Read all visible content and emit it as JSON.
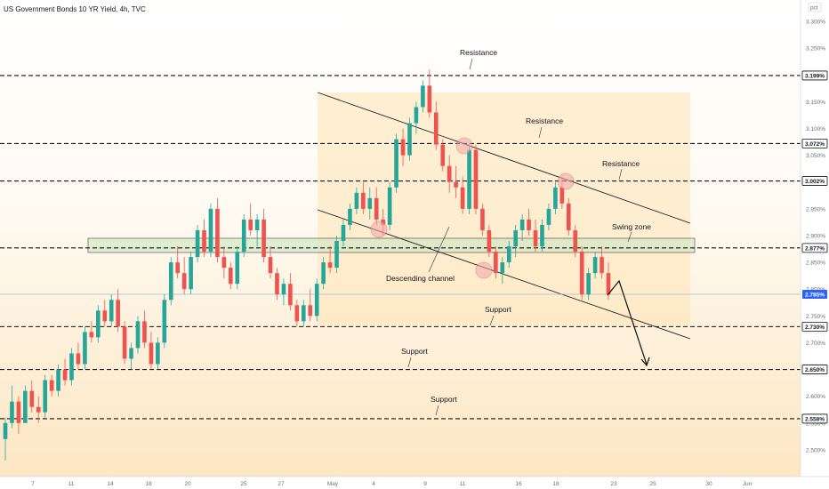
{
  "chart_data": {
    "type": "candlestick",
    "title": "US Government Bonds 10 YR Yield, 4h, TVC",
    "unit_label": "pct",
    "ylim": [
      2.45,
      3.34
    ],
    "price_ticks": [
      "3.300%",
      "3.250%",
      "3.150%",
      "3.100%",
      "3.050%",
      "2.950%",
      "2.900%",
      "2.850%",
      "2.800%",
      "2.750%",
      "2.700%",
      "2.600%",
      "2.550%",
      "2.500%"
    ],
    "date_ticks": [
      "7",
      "11",
      "14",
      "18",
      "20",
      "25",
      "27",
      "May",
      "4",
      "9",
      "11",
      "16",
      "18",
      "23",
      "25",
      "30",
      "Jun"
    ],
    "horizontal_levels": [
      {
        "value": 3.199,
        "label": "3.199%"
      },
      {
        "value": 3.072,
        "label": "3.072%"
      },
      {
        "value": 3.002,
        "label": "3.002%"
      },
      {
        "value": 2.877,
        "label": "2.877%"
      },
      {
        "value": 2.73,
        "label": "2.730%"
      },
      {
        "value": 2.65,
        "label": "2.650%"
      },
      {
        "value": 2.558,
        "label": "2.558%"
      }
    ],
    "current_price": {
      "value": 2.785,
      "label": "2.785%"
    },
    "annotations": [
      "Resistance",
      "Resistance",
      "Resistance",
      "Swing zone",
      "Descending channel",
      "Support",
      "Support",
      "Support"
    ],
    "candles": [
      [
        2.52,
        2.56,
        2.48,
        2.55
      ],
      [
        2.55,
        2.62,
        2.54,
        2.59
      ],
      [
        2.59,
        2.6,
        2.53,
        2.55
      ],
      [
        2.55,
        2.62,
        2.55,
        2.61
      ],
      [
        2.61,
        2.63,
        2.57,
        2.58
      ],
      [
        2.58,
        2.6,
        2.55,
        2.57
      ],
      [
        2.57,
        2.64,
        2.56,
        2.63
      ],
      [
        2.63,
        2.64,
        2.6,
        2.61
      ],
      [
        2.61,
        2.66,
        2.6,
        2.65
      ],
      [
        2.65,
        2.67,
        2.62,
        2.63
      ],
      [
        2.63,
        2.69,
        2.62,
        2.68
      ],
      [
        2.68,
        2.7,
        2.65,
        2.66
      ],
      [
        2.66,
        2.73,
        2.65,
        2.72
      ],
      [
        2.72,
        2.74,
        2.7,
        2.71
      ],
      [
        2.71,
        2.77,
        2.7,
        2.76
      ],
      [
        2.76,
        2.78,
        2.73,
        2.74
      ],
      [
        2.74,
        2.79,
        2.73,
        2.78
      ],
      [
        2.78,
        2.8,
        2.72,
        2.73
      ],
      [
        2.73,
        2.74,
        2.66,
        2.67
      ],
      [
        2.67,
        2.7,
        2.65,
        2.69
      ],
      [
        2.69,
        2.75,
        2.68,
        2.74
      ],
      [
        2.74,
        2.76,
        2.69,
        2.7
      ],
      [
        2.7,
        2.72,
        2.65,
        2.66
      ],
      [
        2.66,
        2.71,
        2.65,
        2.7
      ],
      [
        2.7,
        2.79,
        2.69,
        2.78
      ],
      [
        2.78,
        2.86,
        2.77,
        2.85
      ],
      [
        2.85,
        2.88,
        2.82,
        2.83
      ],
      [
        2.83,
        2.86,
        2.79,
        2.8
      ],
      [
        2.8,
        2.87,
        2.79,
        2.86
      ],
      [
        2.86,
        2.92,
        2.85,
        2.91
      ],
      [
        2.91,
        2.93,
        2.86,
        2.87
      ],
      [
        2.87,
        2.96,
        2.86,
        2.95
      ],
      [
        2.95,
        2.97,
        2.85,
        2.86
      ],
      [
        2.86,
        2.88,
        2.82,
        2.84
      ],
      [
        2.84,
        2.85,
        2.8,
        2.81
      ],
      [
        2.81,
        2.88,
        2.8,
        2.87
      ],
      [
        2.87,
        2.94,
        2.86,
        2.93
      ],
      [
        2.93,
        2.96,
        2.9,
        2.91
      ],
      [
        2.91,
        2.94,
        2.88,
        2.93
      ],
      [
        2.93,
        2.95,
        2.85,
        2.86
      ],
      [
        2.86,
        2.88,
        2.82,
        2.83
      ],
      [
        2.83,
        2.84,
        2.78,
        2.79
      ],
      [
        2.79,
        2.82,
        2.77,
        2.81
      ],
      [
        2.81,
        2.83,
        2.76,
        2.77
      ],
      [
        2.77,
        2.78,
        2.73,
        2.74
      ],
      [
        2.74,
        2.78,
        2.73,
        2.77
      ],
      [
        2.77,
        2.8,
        2.74,
        2.75
      ],
      [
        2.75,
        2.82,
        2.74,
        2.81
      ],
      [
        2.81,
        2.86,
        2.8,
        2.85
      ],
      [
        2.85,
        2.88,
        2.83,
        2.84
      ],
      [
        2.84,
        2.9,
        2.83,
        2.89
      ],
      [
        2.89,
        2.93,
        2.88,
        2.92
      ],
      [
        2.92,
        2.96,
        2.91,
        2.95
      ],
      [
        2.95,
        2.99,
        2.94,
        2.98
      ],
      [
        2.98,
        3.0,
        2.94,
        2.95
      ],
      [
        2.95,
        2.99,
        2.93,
        2.97
      ],
      [
        2.97,
        2.99,
        2.92,
        2.93
      ],
      [
        2.93,
        2.95,
        2.9,
        2.92
      ],
      [
        2.92,
        3.0,
        2.91,
        2.99
      ],
      [
        2.99,
        3.09,
        2.98,
        3.08
      ],
      [
        3.08,
        3.1,
        3.03,
        3.05
      ],
      [
        3.05,
        3.12,
        3.04,
        3.11
      ],
      [
        3.11,
        3.15,
        3.09,
        3.14
      ],
      [
        3.14,
        3.19,
        3.13,
        3.18
      ],
      [
        3.18,
        3.21,
        3.12,
        3.13
      ],
      [
        3.13,
        3.15,
        3.06,
        3.07
      ],
      [
        3.07,
        3.08,
        3.02,
        3.03
      ],
      [
        3.03,
        3.05,
        2.98,
        3.0
      ],
      [
        3.0,
        3.03,
        2.97,
        2.99
      ],
      [
        2.99,
        3.01,
        2.94,
        2.95
      ],
      [
        2.95,
        3.07,
        2.94,
        3.06
      ],
      [
        3.06,
        3.07,
        2.94,
        2.95
      ],
      [
        2.95,
        2.96,
        2.9,
        2.91
      ],
      [
        2.91,
        2.92,
        2.86,
        2.87
      ],
      [
        2.87,
        2.88,
        2.82,
        2.83
      ],
      [
        2.83,
        2.86,
        2.81,
        2.85
      ],
      [
        2.85,
        2.89,
        2.84,
        2.88
      ],
      [
        2.88,
        2.92,
        2.86,
        2.91
      ],
      [
        2.91,
        2.94,
        2.89,
        2.93
      ],
      [
        2.93,
        2.95,
        2.9,
        2.91
      ],
      [
        2.91,
        2.93,
        2.87,
        2.88
      ],
      [
        2.88,
        2.93,
        2.87,
        2.92
      ],
      [
        2.92,
        2.96,
        2.91,
        2.95
      ],
      [
        2.95,
        3.0,
        2.94,
        2.99
      ],
      [
        2.99,
        3.01,
        2.95,
        2.96
      ],
      [
        2.96,
        2.97,
        2.9,
        2.91
      ],
      [
        2.91,
        2.92,
        2.86,
        2.87
      ],
      [
        2.87,
        2.88,
        2.78,
        2.79
      ],
      [
        2.79,
        2.84,
        2.78,
        2.83
      ],
      [
        2.83,
        2.87,
        2.82,
        2.86
      ],
      [
        2.86,
        2.88,
        2.82,
        2.83
      ],
      [
        2.83,
        2.85,
        2.78,
        2.79
      ]
    ]
  }
}
